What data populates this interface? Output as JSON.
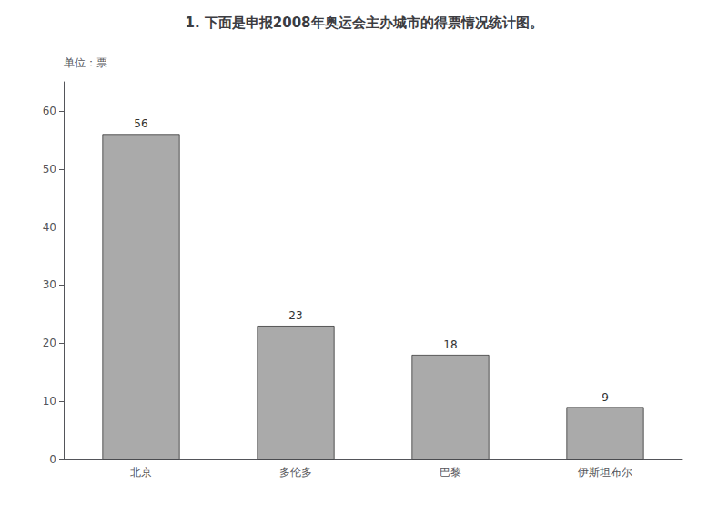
{
  "chart_data": {
    "type": "bar",
    "title": "1. 下面是申报2008年奥运会主办城市的得票情况统计图。",
    "ylabel": "单位：票",
    "categories": [
      "北京",
      "多伦多",
      "巴黎",
      "伊斯坦布尔"
    ],
    "values": [
      56,
      23,
      18,
      9
    ],
    "color": "#aaaaaa",
    "ylim": [
      0,
      65
    ],
    "yticks": [
      0,
      10,
      20,
      30,
      40,
      50,
      60
    ],
    "grid": false,
    "data_labels": true
  }
}
